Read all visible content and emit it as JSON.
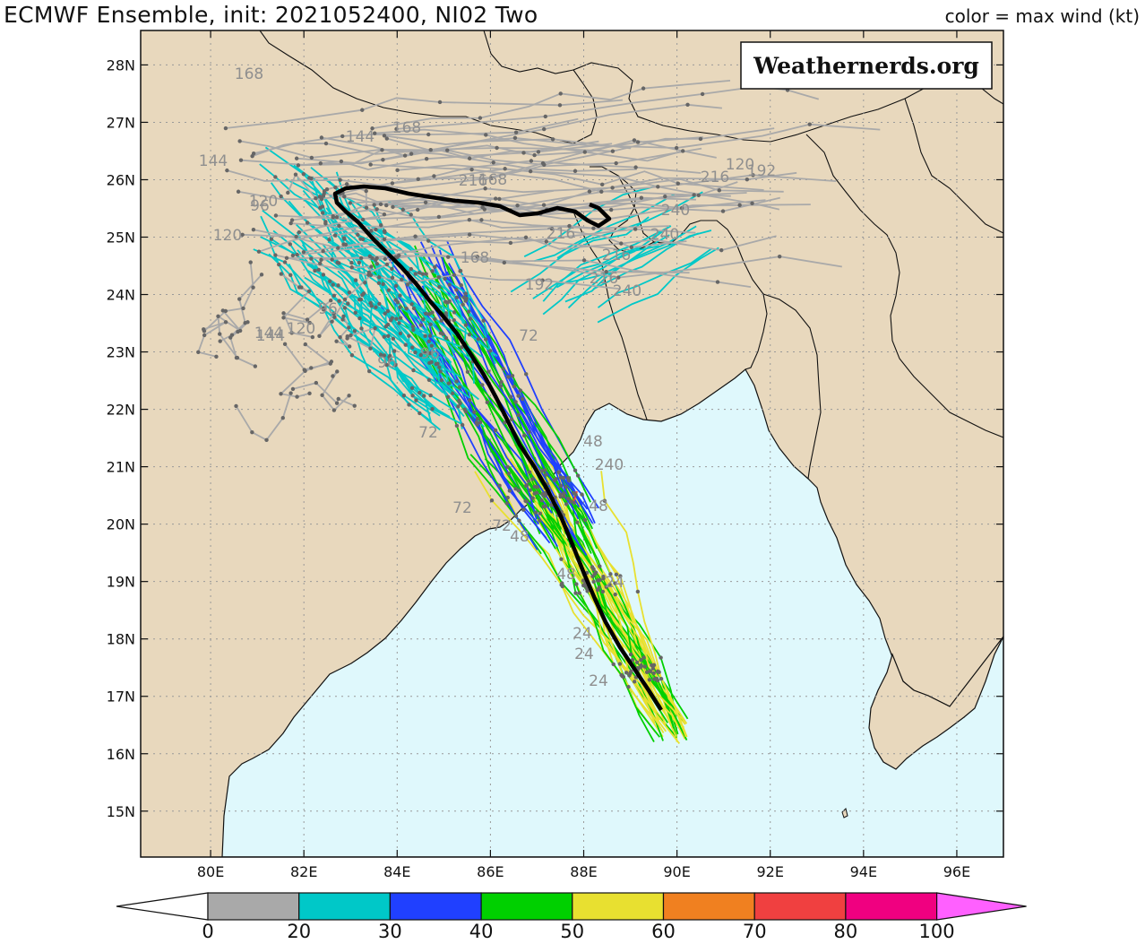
{
  "header": {
    "title": "ECMWF Ensemble, init: 2021052400, NI02 Two",
    "legend_note": "color = max wind (kt)"
  },
  "watermark": {
    "text": "Weathernerds.org"
  },
  "map": {
    "lon_range": [
      78.5,
      97.0
    ],
    "lat_range": [
      14.2,
      28.6
    ],
    "land_color": "#e8d8bd",
    "ocean_color": "#dff8fc",
    "lon_ticks": [
      "80E",
      "82E",
      "84E",
      "86E",
      "88E",
      "90E",
      "92E",
      "94E",
      "96E"
    ],
    "lat_ticks": [
      "15N",
      "16N",
      "17N",
      "18N",
      "19N",
      "20N",
      "21N",
      "22N",
      "23N",
      "24N",
      "25N",
      "26N",
      "27N",
      "28N"
    ],
    "gridlines": "dotted"
  },
  "colorbar": {
    "labels": [
      "0",
      "20",
      "30",
      "40",
      "50",
      "60",
      "70",
      "80",
      "100"
    ],
    "colors": [
      "#a9a9a9",
      "#00c8c8",
      "#2040ff",
      "#00d000",
      "#e8e030",
      "#f08020",
      "#f04040",
      "#f00080"
    ],
    "under_color": "#ffffff",
    "over_color": "#ff60ff"
  },
  "time_labels": [
    {
      "text": "168"
    },
    {
      "text": "144"
    },
    {
      "text": "120"
    },
    {
      "text": "120"
    },
    {
      "text": "144"
    },
    {
      "text": "96"
    },
    {
      "text": "120"
    },
    {
      "text": "144"
    },
    {
      "text": "168"
    },
    {
      "text": "96"
    },
    {
      "text": "96"
    },
    {
      "text": "72"
    },
    {
      "text": "72"
    },
    {
      "text": "72"
    },
    {
      "text": "72"
    },
    {
      "text": "48"
    },
    {
      "text": "48"
    },
    {
      "text": "48"
    },
    {
      "text": "48"
    },
    {
      "text": "240"
    },
    {
      "text": "24"
    },
    {
      "text": "24"
    },
    {
      "text": "24"
    },
    {
      "text": "24"
    },
    {
      "text": "168"
    },
    {
      "text": "216"
    },
    {
      "text": "216"
    },
    {
      "text": "192"
    },
    {
      "text": "216"
    },
    {
      "text": "240"
    },
    {
      "text": "240"
    },
    {
      "text": "216"
    },
    {
      "text": "192"
    },
    {
      "text": "216"
    },
    {
      "text": "240"
    },
    {
      "text": "168"
    },
    {
      "text": "120"
    },
    {
      "text": "96"
    },
    {
      "text": "144"
    }
  ]
}
